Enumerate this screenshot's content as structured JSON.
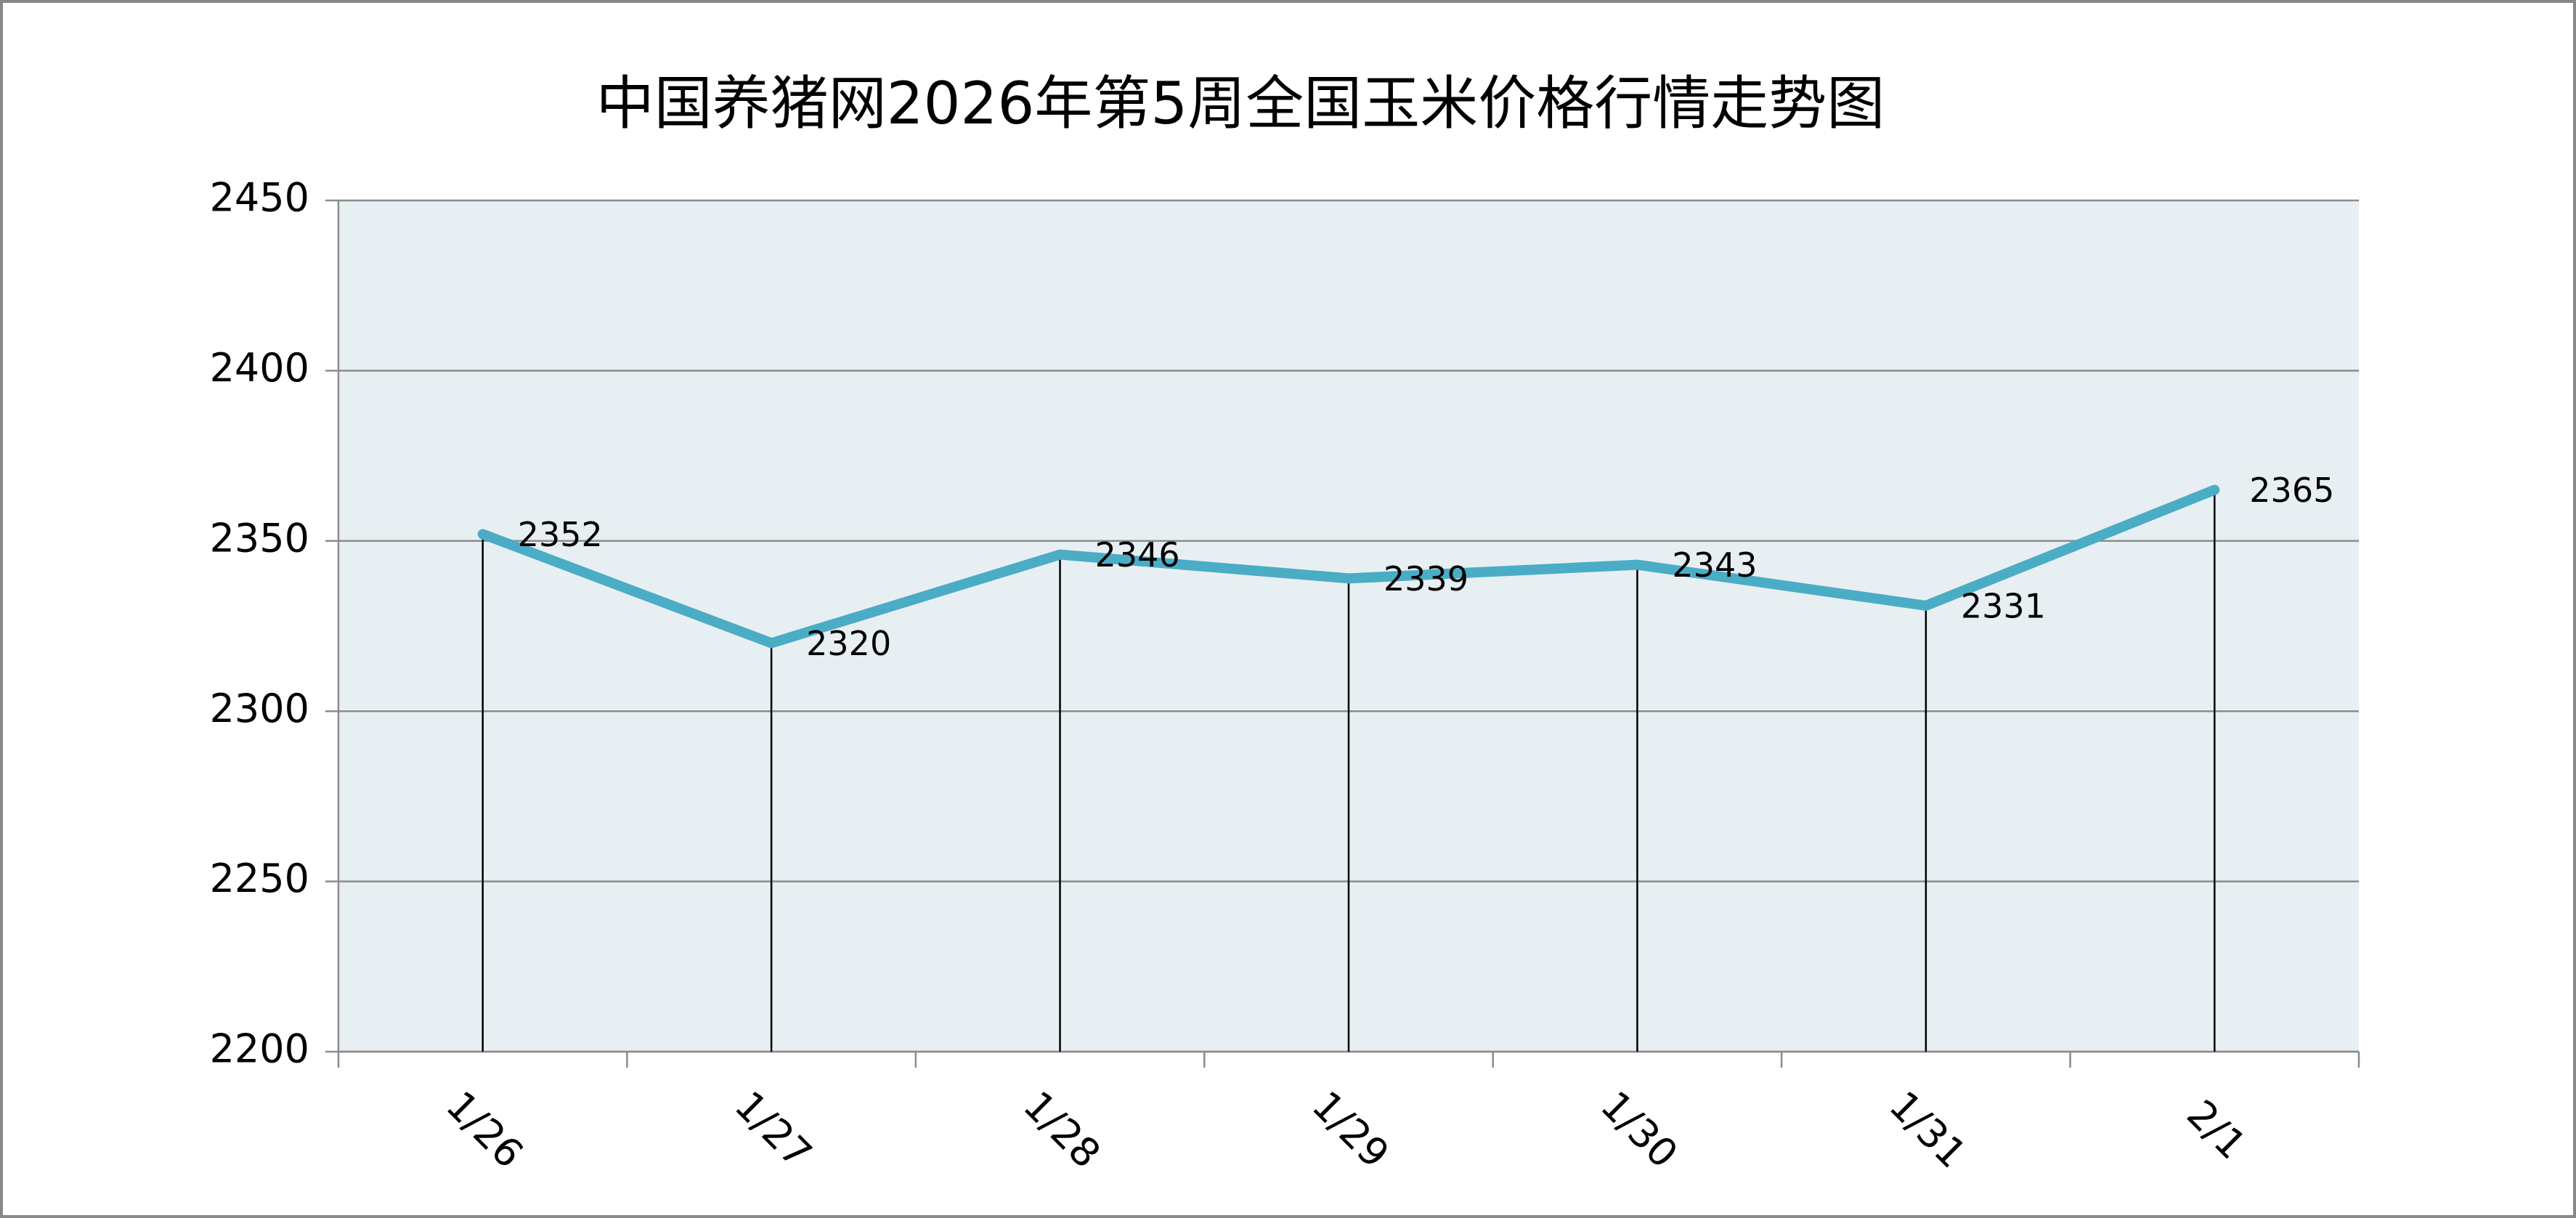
{
  "chart_data": {
    "type": "line",
    "title": "中国养猪网2026年第5周全国玉米价格行情走势图",
    "categories": [
      "1/26",
      "1/27",
      "1/28",
      "1/29",
      "1/30",
      "1/31",
      "2/1"
    ],
    "values": [
      2352,
      2320,
      2346,
      2339,
      2343,
      2331,
      2365
    ],
    "color": "#4bacc6",
    "ylim": [
      2200,
      2450
    ],
    "yticks": [
      2200,
      2250,
      2300,
      2350,
      2400,
      2450
    ],
    "grid": true
  }
}
